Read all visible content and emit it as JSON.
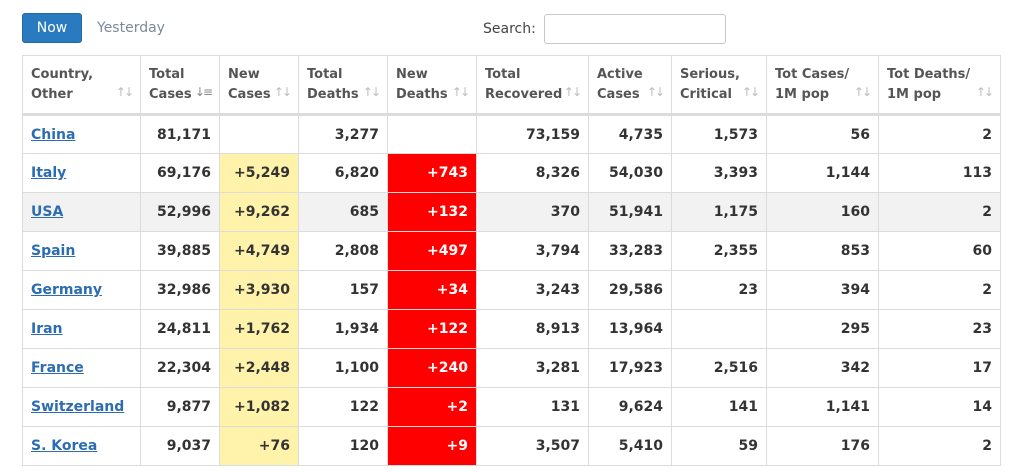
{
  "tabs": {
    "now_label": "Now",
    "yesterday_label": "Yesterday"
  },
  "search": {
    "label": "Search:",
    "value": "",
    "placeholder": ""
  },
  "table": {
    "headers": [
      [
        "Country,",
        "Other"
      ],
      [
        "Total",
        "Cases"
      ],
      [
        "New",
        "Cases"
      ],
      [
        "Total",
        "Deaths"
      ],
      [
        "New",
        "Deaths"
      ],
      [
        "Total",
        "Recovered"
      ],
      [
        "Active",
        "Cases"
      ],
      [
        "Serious,",
        "Critical"
      ],
      [
        "Tot Cases/",
        "1M pop"
      ],
      [
        "Tot Deaths/",
        "1M pop"
      ]
    ],
    "rows": [
      [
        "China",
        "81,171",
        "",
        "3,277",
        "",
        "73,159",
        "4,735",
        "1,573",
        "56",
        "2"
      ],
      [
        "Italy",
        "69,176",
        "+5,249",
        "6,820",
        "+743",
        "8,326",
        "54,030",
        "3,393",
        "1,144",
        "113"
      ],
      [
        "USA",
        "52,996",
        "+9,262",
        "685",
        "+132",
        "370",
        "51,941",
        "1,175",
        "160",
        "2"
      ],
      [
        "Spain",
        "39,885",
        "+4,749",
        "2,808",
        "+497",
        "3,794",
        "33,283",
        "2,355",
        "853",
        "60"
      ],
      [
        "Germany",
        "32,986",
        "+3,930",
        "157",
        "+34",
        "3,243",
        "29,586",
        "23",
        "394",
        "2"
      ],
      [
        "Iran",
        "24,811",
        "+1,762",
        "1,934",
        "+122",
        "8,913",
        "13,964",
        "",
        "295",
        "23"
      ],
      [
        "France",
        "22,304",
        "+2,448",
        "1,100",
        "+240",
        "3,281",
        "17,923",
        "2,516",
        "342",
        "17"
      ],
      [
        "Switzerland",
        "9,877",
        "+1,082",
        "122",
        "+2",
        "131",
        "9,624",
        "141",
        "1,141",
        "14"
      ],
      [
        "S. Korea",
        "9,037",
        "+76",
        "120",
        "+9",
        "3,507",
        "5,410",
        "59",
        "176",
        "2"
      ]
    ]
  },
  "colors": {
    "new_cases_highlight": "#fff2ab",
    "new_deaths_highlight": "#ff0000",
    "link": "#2b6db0",
    "button": "#2a7abf"
  }
}
